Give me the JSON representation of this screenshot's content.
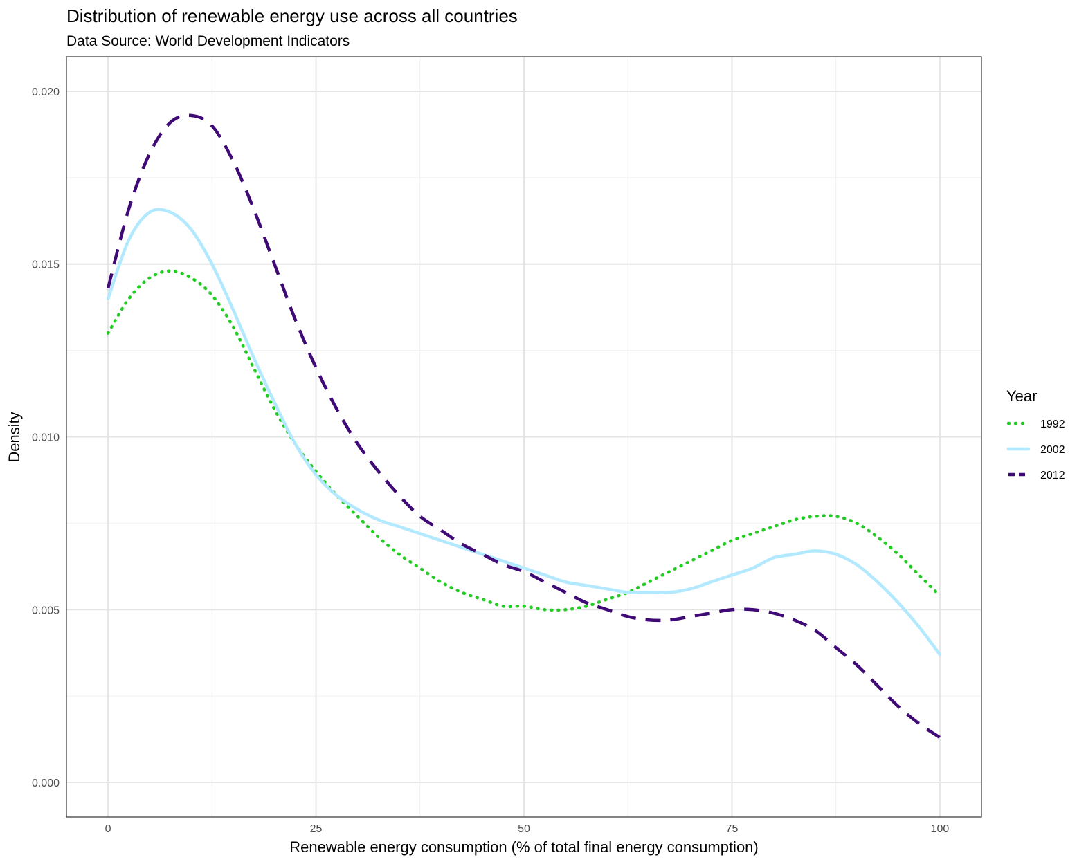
{
  "chart_data": {
    "type": "line",
    "title": "Distribution of renewable energy use across all countries",
    "subtitle": "Data Source: World Development Indicators",
    "xlabel": "Renewable energy consumption (% of total final energy consumption)",
    "ylabel": "Density",
    "xlim": [
      -5,
      105
    ],
    "ylim": [
      -0.001,
      0.021
    ],
    "x_ticks": [
      0,
      25,
      50,
      75,
      100
    ],
    "y_ticks": [
      0.0,
      0.005,
      0.01,
      0.015,
      0.02
    ],
    "x_tick_labels": [
      "0",
      "25",
      "50",
      "75",
      "100"
    ],
    "y_tick_labels": [
      "0.000",
      "0.005",
      "0.010",
      "0.015",
      "0.020"
    ],
    "grid": true,
    "legend": {
      "title": "Year",
      "position": "right"
    },
    "series": [
      {
        "name": "1992",
        "color": "#22cc22",
        "linestyle": "dotted",
        "x": [
          0,
          2.5,
          5,
          7.5,
          10,
          12.5,
          15,
          17.5,
          20,
          22.5,
          25,
          27.5,
          30,
          32.5,
          35,
          37.5,
          40,
          42.5,
          45,
          47.5,
          50,
          52.5,
          55,
          57.5,
          60,
          62.5,
          65,
          67.5,
          70,
          72.5,
          75,
          77.5,
          80,
          82.5,
          85,
          87.5,
          90,
          92.5,
          95,
          97.5,
          100
        ],
        "y": [
          0.013,
          0.014,
          0.0146,
          0.0148,
          0.0146,
          0.0141,
          0.0132,
          0.012,
          0.0108,
          0.0098,
          0.009,
          0.0083,
          0.0077,
          0.0071,
          0.0066,
          0.0062,
          0.0058,
          0.0055,
          0.0053,
          0.0051,
          0.0051,
          0.005,
          0.005,
          0.0051,
          0.0053,
          0.0055,
          0.0058,
          0.0061,
          0.0064,
          0.0067,
          0.007,
          0.0072,
          0.0074,
          0.0076,
          0.0077,
          0.0077,
          0.0075,
          0.0071,
          0.0066,
          0.006,
          0.0054
        ]
      },
      {
        "name": "2002",
        "color": "#b3e9ff",
        "linestyle": "solid",
        "x": [
          0,
          2.5,
          5,
          7.5,
          10,
          12.5,
          15,
          17.5,
          20,
          22.5,
          25,
          27.5,
          30,
          32.5,
          35,
          37.5,
          40,
          42.5,
          45,
          47.5,
          50,
          52.5,
          55,
          57.5,
          60,
          62.5,
          65,
          67.5,
          70,
          72.5,
          75,
          77.5,
          80,
          82.5,
          85,
          87.5,
          90,
          92.5,
          95,
          97.5,
          100
        ],
        "y": [
          0.014,
          0.0157,
          0.0165,
          0.0165,
          0.016,
          0.015,
          0.0137,
          0.0123,
          0.011,
          0.0098,
          0.0089,
          0.0083,
          0.0079,
          0.0076,
          0.0074,
          0.0072,
          0.007,
          0.0068,
          0.0066,
          0.0064,
          0.0062,
          0.006,
          0.0058,
          0.0057,
          0.0056,
          0.0055,
          0.0055,
          0.0055,
          0.0056,
          0.0058,
          0.006,
          0.0062,
          0.0065,
          0.0066,
          0.0067,
          0.0066,
          0.0063,
          0.0058,
          0.0052,
          0.0045,
          0.0037
        ]
      },
      {
        "name": "2012",
        "color": "#3f0a76",
        "linestyle": "dashed",
        "x": [
          0,
          2.5,
          5,
          7.5,
          10,
          12.5,
          15,
          17.5,
          20,
          22.5,
          25,
          27.5,
          30,
          32.5,
          35,
          37.5,
          40,
          42.5,
          45,
          47.5,
          50,
          52.5,
          55,
          57.5,
          60,
          62.5,
          65,
          67.5,
          70,
          72.5,
          75,
          77.5,
          80,
          82.5,
          85,
          87.5,
          90,
          92.5,
          95,
          97.5,
          100
        ],
        "y": [
          0.0143,
          0.0166,
          0.0182,
          0.0191,
          0.0193,
          0.019,
          0.018,
          0.0166,
          0.015,
          0.0134,
          0.012,
          0.0108,
          0.0098,
          0.009,
          0.0083,
          0.0077,
          0.0073,
          0.0069,
          0.0066,
          0.0063,
          0.0061,
          0.0058,
          0.0055,
          0.0052,
          0.005,
          0.0048,
          0.0047,
          0.0047,
          0.0048,
          0.0049,
          0.005,
          0.005,
          0.0049,
          0.0047,
          0.0044,
          0.0039,
          0.0034,
          0.0028,
          0.0022,
          0.0017,
          0.0013
        ]
      }
    ]
  }
}
